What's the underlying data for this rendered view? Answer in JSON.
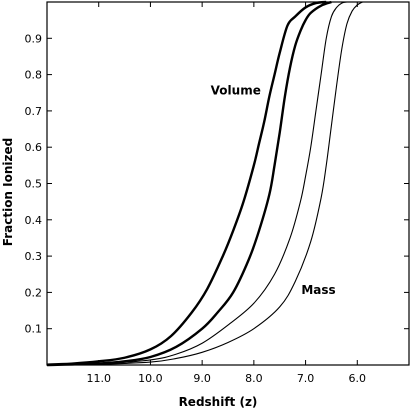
{
  "chart_data": {
    "type": "line",
    "xlabel": "Redshift (z)",
    "ylabel": "Fraction Ionized",
    "xlim": [
      12.0,
      5.0
    ],
    "ylim": [
      0.0,
      1.0
    ],
    "x_ticks": [
      {
        "value": 11.0,
        "label": "11.0"
      },
      {
        "value": 10.0,
        "label": "10.0"
      },
      {
        "value": 9.0,
        "label": "9.0"
      },
      {
        "value": 8.0,
        "label": "8.0"
      },
      {
        "value": 7.0,
        "label": "7.0"
      },
      {
        "value": 6.0,
        "label": "6.0"
      }
    ],
    "y_ticks": [
      {
        "value": 0.1,
        "label": "0.1"
      },
      {
        "value": 0.2,
        "label": "0.2"
      },
      {
        "value": 0.3,
        "label": "0.3"
      },
      {
        "value": 0.4,
        "label": "0.4"
      },
      {
        "value": 0.5,
        "label": "0.5"
      },
      {
        "value": 0.6,
        "label": "0.6"
      },
      {
        "value": 0.7,
        "label": "0.7"
      },
      {
        "value": 0.8,
        "label": "0.8"
      },
      {
        "value": 0.9,
        "label": "0.9"
      }
    ],
    "annotations": [
      {
        "text": "Volume",
        "x": 8.35,
        "y": 0.745
      },
      {
        "text": "Mass",
        "x": 6.75,
        "y": 0.195
      }
    ],
    "series": [
      {
        "group": "volume",
        "weight": "thick",
        "x": [
          12.0,
          11.5,
          11.0,
          10.5,
          10.0,
          9.6,
          9.2,
          8.9,
          8.6,
          8.4,
          8.2,
          8.0,
          7.9,
          7.8,
          7.7,
          7.6,
          7.5,
          7.35,
          7.2,
          7.0,
          6.8,
          6.6
        ],
        "y": [
          0.001,
          0.004,
          0.01,
          0.02,
          0.043,
          0.08,
          0.145,
          0.21,
          0.3,
          0.37,
          0.45,
          0.55,
          0.61,
          0.67,
          0.74,
          0.8,
          0.86,
          0.935,
          0.96,
          0.985,
          0.997,
          1.0
        ]
      },
      {
        "group": "volume",
        "weight": "thick",
        "x": [
          12.0,
          11.0,
          10.5,
          10.0,
          9.5,
          9.0,
          8.7,
          8.4,
          8.1,
          7.9,
          7.7,
          7.6,
          7.5,
          7.4,
          7.3,
          7.2,
          7.1,
          7.0,
          6.9,
          6.7,
          6.5
        ],
        "y": [
          0.0,
          0.004,
          0.01,
          0.022,
          0.05,
          0.1,
          0.145,
          0.2,
          0.29,
          0.37,
          0.47,
          0.55,
          0.64,
          0.74,
          0.82,
          0.88,
          0.92,
          0.95,
          0.97,
          0.99,
          1.0
        ]
      },
      {
        "group": "mass",
        "weight": "thin",
        "x": [
          12.0,
          11.0,
          10.0,
          9.5,
          9.0,
          8.5,
          8.0,
          7.6,
          7.3,
          7.1,
          7.0,
          6.9,
          6.8,
          6.7,
          6.6,
          6.5,
          6.4,
          6.3,
          6.2
        ],
        "y": [
          0.0,
          0.003,
          0.014,
          0.03,
          0.06,
          0.11,
          0.17,
          0.25,
          0.35,
          0.45,
          0.52,
          0.6,
          0.7,
          0.8,
          0.9,
          0.96,
          0.985,
          0.997,
          1.0
        ]
      },
      {
        "group": "mass",
        "weight": "thin",
        "x": [
          12.0,
          11.0,
          10.0,
          9.5,
          9.0,
          8.5,
          8.0,
          7.5,
          7.2,
          6.9,
          6.7,
          6.6,
          6.5,
          6.4,
          6.3,
          6.2,
          6.1,
          6.0,
          5.9
        ],
        "y": [
          0.0,
          0.002,
          0.008,
          0.018,
          0.035,
          0.062,
          0.1,
          0.16,
          0.23,
          0.34,
          0.46,
          0.55,
          0.66,
          0.77,
          0.87,
          0.94,
          0.975,
          0.992,
          1.0
        ]
      }
    ]
  }
}
